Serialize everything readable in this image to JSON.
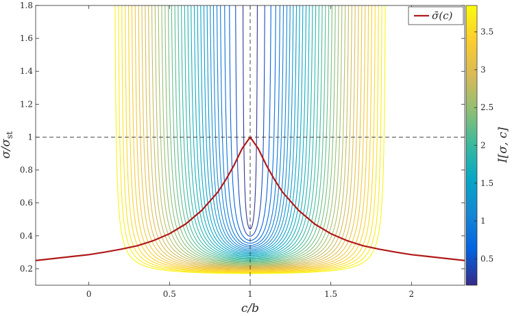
{
  "chart_data": {
    "type": "line",
    "title": "",
    "xlabel": "c/b",
    "ylabel": "σ/σ_st",
    "colorbar_label": "I[σ, c]",
    "xlim": [
      -0.33,
      2.33
    ],
    "ylim": [
      0.1,
      1.8
    ],
    "x_ticks": [
      "0",
      "0.5",
      "1",
      "1.5",
      "2"
    ],
    "x_tick_values": [
      0,
      0.5,
      1,
      1.5,
      2
    ],
    "y_ticks": [
      "0.2",
      "0.4",
      "0.6",
      "0.8",
      "1",
      "1.2",
      "1.4",
      "1.6",
      "1.8"
    ],
    "y_tick_values": [
      0.2,
      0.4,
      0.6,
      0.8,
      1.0,
      1.2,
      1.4,
      1.6,
      1.8
    ],
    "colorbar_range": [
      0.15,
      3.85
    ],
    "colorbar_ticks": [
      "0.5",
      "1",
      "1.5",
      "2",
      "2.5",
      "3",
      "3.5"
    ],
    "colorbar_tick_values": [
      0.5,
      1,
      1.5,
      2,
      2.5,
      3,
      3.5
    ],
    "colormap": "parula",
    "contour_levels": [
      0.22,
      0.44,
      0.62,
      0.76,
      0.88,
      0.98,
      1.08,
      1.17,
      1.26,
      1.35,
      1.44,
      1.53,
      1.62,
      1.71,
      1.8,
      1.89,
      1.98,
      2.07,
      2.16,
      2.25,
      2.34,
      2.43,
      2.52,
      2.61,
      2.7,
      2.79,
      2.88,
      2.97,
      3.06,
      3.15,
      3.24,
      3.33,
      3.42,
      3.51,
      3.6,
      3.69,
      3.78
    ],
    "reference_lines": {
      "vertical_x": 1,
      "horizontal_y": 1,
      "style": "dashed"
    },
    "grid": false,
    "legend": {
      "position": "top-right",
      "entries": [
        "σ̄(c)"
      ]
    },
    "series": [
      {
        "name": "σ̄(c)",
        "color": "#b01818",
        "x": [
          -0.33,
          -0.2,
          -0.1,
          0,
          0.1,
          0.2,
          0.3,
          0.4,
          0.5,
          0.6,
          0.7,
          0.8,
          0.85,
          0.9,
          0.95,
          1.0,
          1.05,
          1.1,
          1.15,
          1.2,
          1.3,
          1.4,
          1.5,
          1.6,
          1.7,
          1.8,
          1.9,
          2.0,
          2.1,
          2.2,
          2.33
        ],
        "y": [
          0.25,
          0.264,
          0.275,
          0.286,
          0.301,
          0.319,
          0.34,
          0.371,
          0.413,
          0.472,
          0.555,
          0.666,
          0.743,
          0.83,
          0.93,
          1.0,
          0.93,
          0.83,
          0.743,
          0.666,
          0.555,
          0.472,
          0.413,
          0.371,
          0.34,
          0.319,
          0.301,
          0.286,
          0.275,
          0.264,
          0.25
        ]
      }
    ]
  }
}
